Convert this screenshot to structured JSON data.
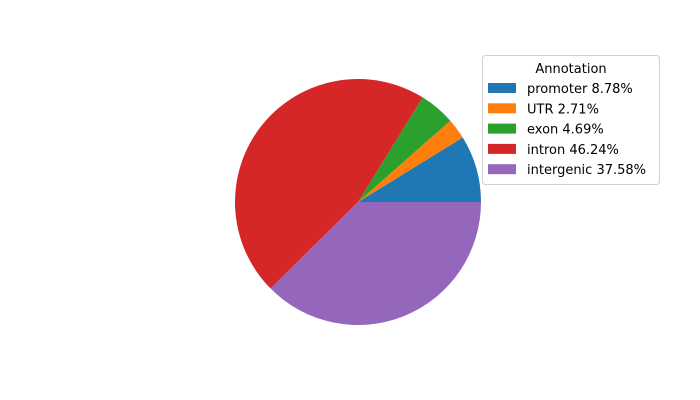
{
  "chart_data": {
    "type": "pie",
    "start_angle_deg": 0,
    "direction": "counterclockwise",
    "legend_title": "Annotation",
    "legend_placement": "upper-right",
    "slices": [
      {
        "label": "promoter 8.78%",
        "value": 8.78,
        "color": "#1f77b4"
      },
      {
        "label": "UTR 2.71%",
        "value": 2.71,
        "color": "#ff7f0e"
      },
      {
        "label": "exon 4.69%",
        "value": 4.69,
        "color": "#2ca02c"
      },
      {
        "label": "intron 46.24%",
        "value": 46.24,
        "color": "#d62728"
      },
      {
        "label": "intergenic 37.58%",
        "value": 37.58,
        "color": "#9467bd"
      }
    ]
  }
}
